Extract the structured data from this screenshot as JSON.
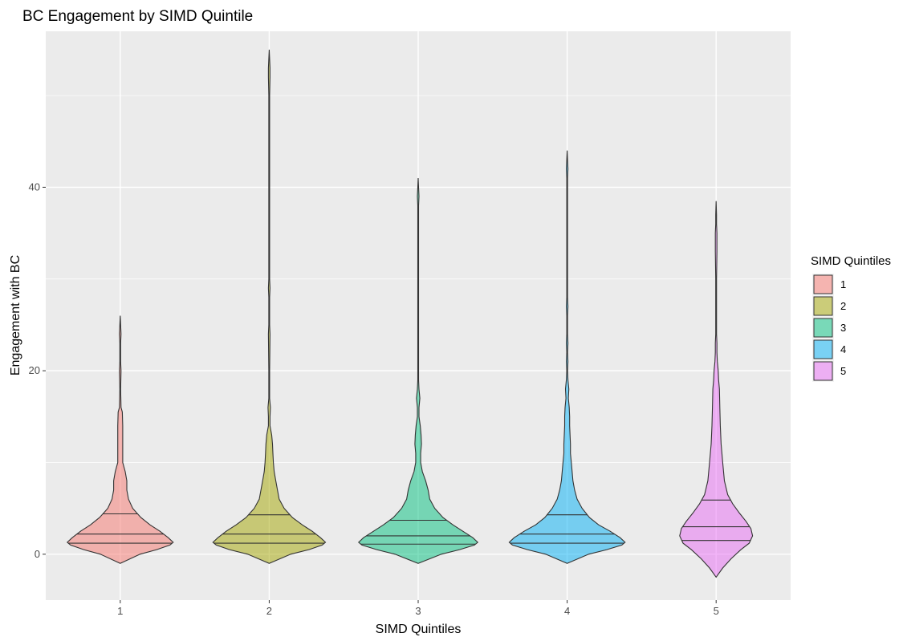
{
  "chart_data": {
    "type": "violin",
    "title": "BC Engagement by SIMD Quintile",
    "xlabel": "SIMD Quintiles",
    "ylabel": "Engagement with BC",
    "ylim": [
      -5,
      57
    ],
    "y_ticks": [
      0,
      20,
      40
    ],
    "y_minor_grid": [
      10,
      30,
      50
    ],
    "grid": true,
    "panel_background": "#ebebeb",
    "grid_color": "#ffffff",
    "categories": [
      "1",
      "2",
      "3",
      "4",
      "5"
    ],
    "legend": {
      "title": "SIMD Quintiles",
      "position": "right",
      "entries": [
        "1",
        "2",
        "3",
        "4",
        "5"
      ]
    },
    "series": [
      {
        "category": "1",
        "color": "#F8766D",
        "y_min": -1,
        "y_max": 26,
        "quantiles": [
          1.2,
          2.2,
          4.4
        ],
        "profile": [
          [
            -1,
            0
          ],
          [
            0,
            24
          ],
          [
            0.5,
            44
          ],
          [
            1,
            60
          ],
          [
            1.3,
            64
          ],
          [
            1.8,
            58
          ],
          [
            2.5,
            48
          ],
          [
            3.2,
            36
          ],
          [
            4,
            25
          ],
          [
            4.5,
            20
          ],
          [
            5,
            15
          ],
          [
            6,
            10
          ],
          [
            7,
            8
          ],
          [
            8,
            8
          ],
          [
            9,
            6
          ],
          [
            10,
            3
          ],
          [
            12,
            3
          ],
          [
            14,
            3
          ],
          [
            15.5,
            2.5
          ],
          [
            16,
            1
          ],
          [
            18,
            0.5
          ],
          [
            20,
            1
          ],
          [
            21,
            0.5
          ],
          [
            23,
            0.5
          ],
          [
            24,
            1
          ],
          [
            25,
            0.5
          ],
          [
            26,
            0
          ]
        ]
      },
      {
        "category": "2",
        "color": "#A3A500",
        "y_min": -1,
        "y_max": 55,
        "quantiles": [
          1.2,
          2.2,
          4.3
        ],
        "profile": [
          [
            -1,
            0
          ],
          [
            0,
            26
          ],
          [
            0.5,
            48
          ],
          [
            1,
            64
          ],
          [
            1.3,
            68
          ],
          [
            1.8,
            62
          ],
          [
            2.5,
            52
          ],
          [
            3.2,
            40
          ],
          [
            4,
            28
          ],
          [
            5,
            18
          ],
          [
            6,
            12
          ],
          [
            7,
            10
          ],
          [
            8,
            8
          ],
          [
            9,
            6
          ],
          [
            10,
            5
          ],
          [
            11,
            4.5
          ],
          [
            12,
            4
          ],
          [
            13,
            3
          ],
          [
            14,
            1
          ],
          [
            15,
            1
          ],
          [
            16,
            1.5
          ],
          [
            17,
            0.5
          ],
          [
            20,
            0.5
          ],
          [
            24,
            1
          ],
          [
            25,
            0.5
          ],
          [
            28,
            0.5
          ],
          [
            29,
            1
          ],
          [
            30,
            0.5
          ],
          [
            50,
            0.5
          ],
          [
            52,
            1
          ],
          [
            53,
            1
          ],
          [
            54,
            0.5
          ],
          [
            55,
            0
          ]
        ]
      },
      {
        "category": "3",
        "color": "#00BF7D",
        "y_min": -1,
        "y_max": 41,
        "quantiles": [
          1.1,
          2.0,
          3.7
        ],
        "profile": [
          [
            -1,
            0
          ],
          [
            0,
            28
          ],
          [
            0.5,
            50
          ],
          [
            1,
            68
          ],
          [
            1.3,
            72
          ],
          [
            1.8,
            66
          ],
          [
            2.5,
            54
          ],
          [
            3.2,
            42
          ],
          [
            4,
            30
          ],
          [
            5,
            20
          ],
          [
            6,
            14
          ],
          [
            7,
            12
          ],
          [
            8,
            9
          ],
          [
            9,
            5
          ],
          [
            10,
            3
          ],
          [
            11,
            3
          ],
          [
            12,
            4
          ],
          [
            13,
            3.5
          ],
          [
            14,
            2.5
          ],
          [
            15,
            1
          ],
          [
            16,
            1
          ],
          [
            17,
            2
          ],
          [
            18,
            1
          ],
          [
            19,
            0.5
          ],
          [
            38,
            0.5
          ],
          [
            39,
            1
          ],
          [
            40,
            0.5
          ],
          [
            41,
            0
          ]
        ]
      },
      {
        "category": "4",
        "color": "#00B0F6",
        "y_min": -1,
        "y_max": 44,
        "quantiles": [
          1.2,
          2.2,
          4.3
        ],
        "profile": [
          [
            -1,
            0
          ],
          [
            0,
            26
          ],
          [
            0.5,
            48
          ],
          [
            1,
            66
          ],
          [
            1.3,
            70
          ],
          [
            1.8,
            64
          ],
          [
            2.5,
            52
          ],
          [
            3.2,
            38
          ],
          [
            4,
            27
          ],
          [
            5,
            18
          ],
          [
            6,
            12
          ],
          [
            7,
            9
          ],
          [
            8,
            7
          ],
          [
            9,
            6
          ],
          [
            10,
            5
          ],
          [
            11,
            4
          ],
          [
            12,
            4
          ],
          [
            13,
            3.5
          ],
          [
            14,
            3
          ],
          [
            15,
            3
          ],
          [
            16,
            2.5
          ],
          [
            17,
            1.5
          ],
          [
            18,
            2
          ],
          [
            19,
            1
          ],
          [
            20,
            0.5
          ],
          [
            21,
            1
          ],
          [
            22,
            0.5
          ],
          [
            23,
            1
          ],
          [
            24,
            0.5
          ],
          [
            26,
            0.5
          ],
          [
            27,
            1
          ],
          [
            28,
            0.5
          ],
          [
            41,
            0.5
          ],
          [
            42,
            1
          ],
          [
            43,
            0.5
          ],
          [
            44,
            0
          ]
        ]
      },
      {
        "category": "5",
        "color": "#E76BF3",
        "y_min": -2.5,
        "y_max": 38.5,
        "quantiles": [
          1.5,
          3.0,
          5.9
        ],
        "profile": [
          [
            -2.5,
            0
          ],
          [
            -1.5,
            8
          ],
          [
            -0.5,
            18
          ],
          [
            0.5,
            30
          ],
          [
            1.2,
            40
          ],
          [
            2,
            44
          ],
          [
            2.8,
            42
          ],
          [
            3.6,
            36
          ],
          [
            4.5,
            28
          ],
          [
            5.5,
            20
          ],
          [
            6.5,
            14
          ],
          [
            8,
            10
          ],
          [
            10,
            8
          ],
          [
            12,
            6
          ],
          [
            14,
            5
          ],
          [
            16,
            4.5
          ],
          [
            18,
            4
          ],
          [
            19,
            3
          ],
          [
            20,
            2.5
          ],
          [
            21,
            1.5
          ],
          [
            22,
            1
          ],
          [
            23,
            1
          ],
          [
            24,
            0.5
          ],
          [
            30,
            0.5
          ],
          [
            33,
            1
          ],
          [
            34,
            1
          ],
          [
            35,
            1
          ],
          [
            36,
            0.5
          ],
          [
            37,
            0.5
          ],
          [
            38.5,
            0
          ]
        ]
      }
    ]
  }
}
